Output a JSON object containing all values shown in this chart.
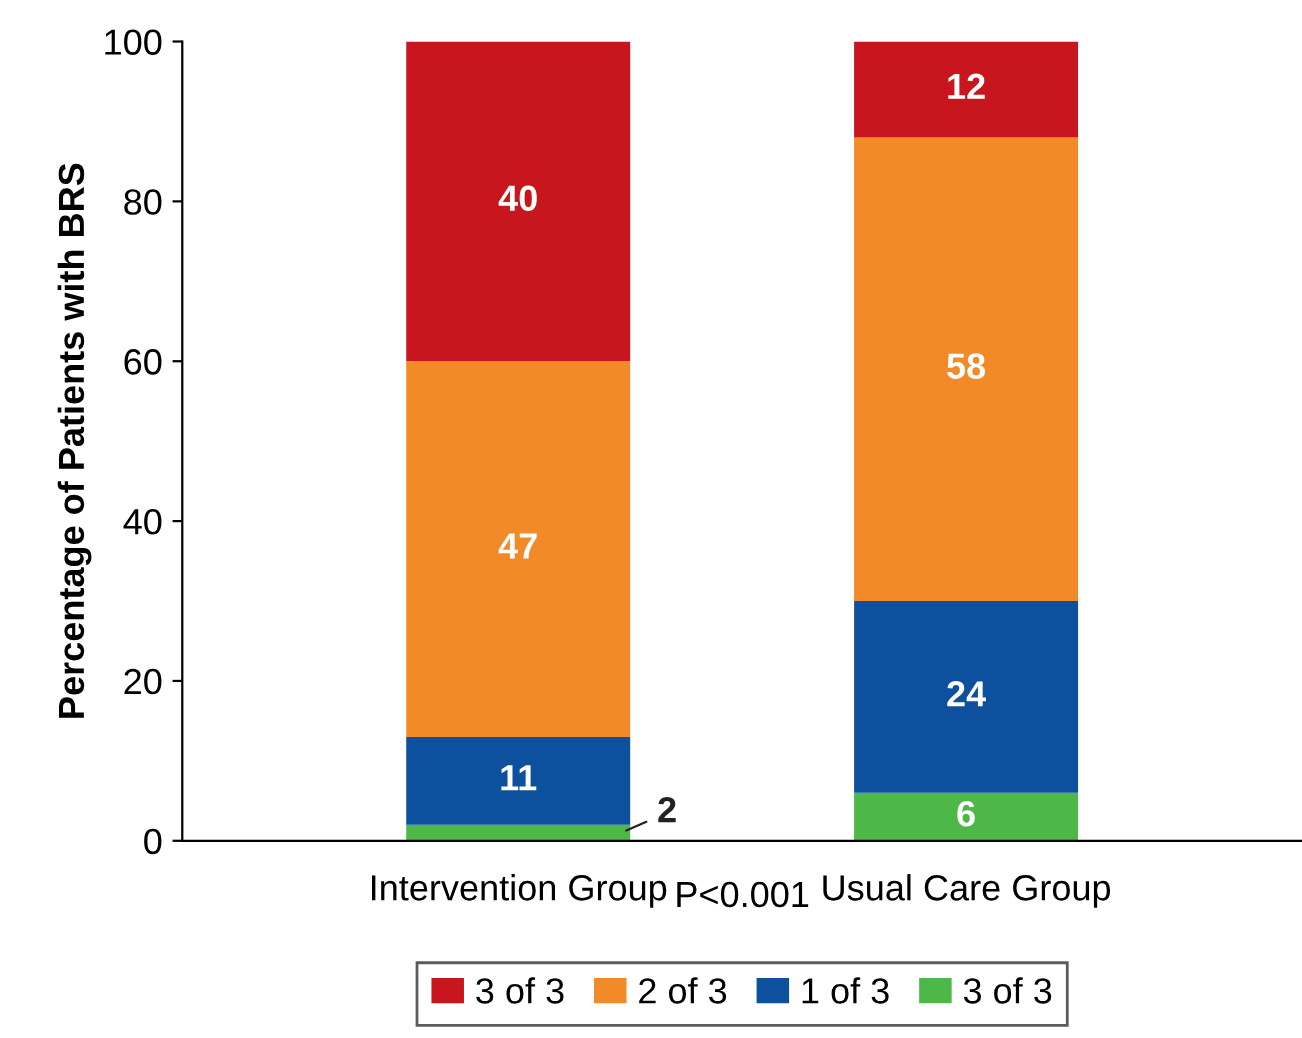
{
  "chart_data": {
    "type": "bar",
    "stacked": true,
    "ylabel": "Percentage of Patients with BRS",
    "categories": [
      "Intervention Group",
      "Usual Care Group"
    ],
    "series": [
      {
        "name": "3 of 3",
        "color": "#4db848",
        "values": [
          2,
          6
        ]
      },
      {
        "name": "1 of 3",
        "color": "#0d509e",
        "values": [
          11,
          24
        ]
      },
      {
        "name": "2 of 3",
        "color": "#f28a28",
        "values": [
          47,
          58
        ]
      },
      {
        "name": "3 of 3",
        "color": "#c8161e",
        "values": [
          40,
          12
        ]
      }
    ],
    "ylim": [
      0,
      100
    ],
    "yticks": [
      0,
      20,
      40,
      60,
      80,
      100
    ],
    "grid": false,
    "legend": "bottom",
    "data_labels": true,
    "annotations": [
      "P<0.001"
    ]
  }
}
